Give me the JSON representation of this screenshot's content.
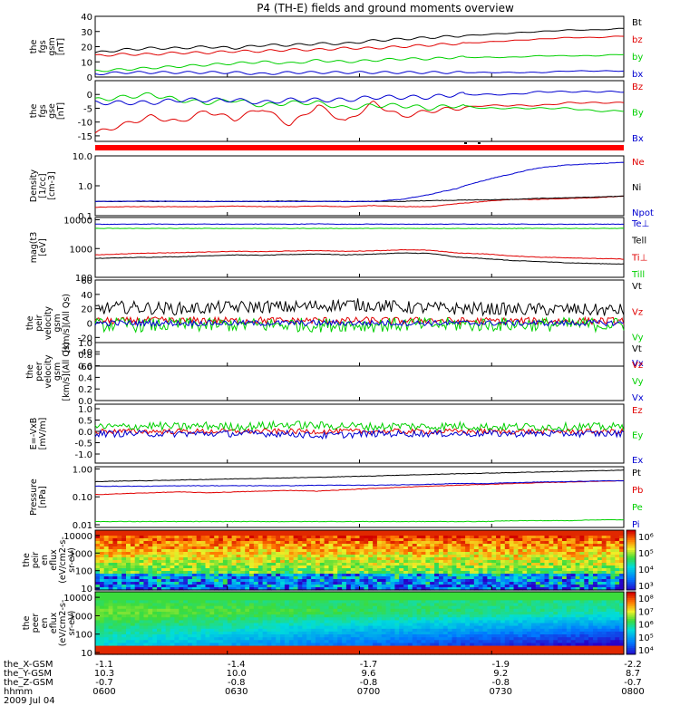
{
  "title": "P4 (TH-E) fields and ground moments overview",
  "colors": {
    "black": "#000000",
    "red": "#e00000",
    "green": "#00d000",
    "blue": "#0000d0"
  },
  "chart_data": [
    {
      "type": "line",
      "ylabel": [
        "the",
        "fgs",
        "gsm",
        "[nT]"
      ],
      "ylim": [
        0,
        40
      ],
      "yticks": [
        "40",
        "30",
        "20",
        "10",
        "0"
      ],
      "yvals": [
        40,
        30,
        20,
        10,
        0
      ],
      "series": [
        {
          "name": "Bt",
          "color": "black",
          "values": [
            16,
            18,
            19,
            19,
            20,
            19,
            21,
            21,
            22,
            22,
            24,
            25,
            26,
            27,
            28,
            29,
            30,
            31,
            31,
            32
          ]
        },
        {
          "name": "bz",
          "color": "red",
          "values": [
            14,
            15,
            15,
            16,
            16,
            17,
            17,
            18,
            18,
            19,
            19,
            20,
            21,
            22,
            23,
            24,
            25,
            26,
            26,
            27
          ]
        },
        {
          "name": "by",
          "color": "green",
          "values": [
            4,
            5,
            6,
            7,
            8,
            9,
            10,
            9,
            11,
            10,
            11,
            12,
            12,
            13,
            13,
            13,
            14,
            14,
            14,
            15
          ]
        },
        {
          "name": "bx",
          "color": "blue",
          "values": [
            2,
            3,
            3,
            3,
            3,
            3,
            2,
            3,
            3,
            3,
            3,
            3,
            3,
            3,
            3,
            3,
            3,
            4,
            4,
            4
          ]
        }
      ]
    },
    {
      "type": "line",
      "ylabel": [
        "the",
        "fgs",
        "gse",
        "[nT]"
      ],
      "ylim": [
        -17,
        5
      ],
      "yticks": [
        "0",
        "-5",
        "-10",
        "-15"
      ],
      "yvals": [
        0,
        -5,
        -10,
        -15
      ],
      "series": [
        {
          "name": "Bz",
          "color": "red",
          "values": [
            -14,
            -11,
            -8,
            -10,
            -6,
            -9,
            -5,
            -11,
            -4,
            -10,
            -3,
            -8,
            -6,
            -5,
            -4,
            -4,
            -4,
            -3,
            -3,
            -3
          ]
        },
        {
          "name": "By",
          "color": "green",
          "values": [
            -2,
            -1,
            0,
            -2,
            -3,
            -2,
            -4,
            -3,
            -3,
            -5,
            -4,
            -4,
            -5,
            -4,
            -5,
            -5,
            -5,
            -5,
            -6,
            -6
          ]
        },
        {
          "name": "Bx",
          "color": "blue",
          "values": [
            -3,
            -3,
            -3,
            -2,
            -2,
            -2,
            -3,
            -2,
            -2,
            -2,
            -1,
            -1,
            -1,
            0,
            0,
            0,
            1,
            1,
            1,
            1
          ]
        }
      ]
    },
    {
      "type": "log-line",
      "ylabel": [
        "Density",
        "[1/cc]",
        "[cm-3]"
      ],
      "ylog": [
        0.1,
        10
      ],
      "yticks": [
        "10.0",
        "1.0",
        "0.1"
      ],
      "yvals": [
        10,
        1,
        0.1
      ],
      "series": [
        {
          "name": "Ne",
          "color": "red",
          "values": [
            0.19,
            0.2,
            0.2,
            0.2,
            0.2,
            0.21,
            0.2,
            0.2,
            0.21,
            0.2,
            0.22,
            0.2,
            0.2,
            0.25,
            0.3,
            0.35,
            0.35,
            0.38,
            0.4,
            0.45
          ]
        },
        {
          "name": "Ni",
          "color": "black",
          "values": [
            0.3,
            0.3,
            0.3,
            0.3,
            0.3,
            0.3,
            0.3,
            0.31,
            0.3,
            0.3,
            0.3,
            0.3,
            0.32,
            0.33,
            0.34,
            0.35,
            0.38,
            0.4,
            0.42,
            0.45
          ]
        },
        {
          "name": "Npot",
          "color": "blue",
          "values": [
            0.3,
            0.3,
            0.31,
            0.3,
            0.3,
            0.3,
            0.3,
            0.3,
            0.3,
            0.3,
            0.3,
            0.35,
            0.5,
            0.8,
            1.5,
            2.5,
            4,
            5,
            5.5,
            6
          ]
        }
      ]
    },
    {
      "type": "log-line",
      "ylabel": [
        "mag(t3",
        "[eV]"
      ],
      "ylog": [
        100,
        12000
      ],
      "yticks": [
        "10000",
        "1000",
        "100"
      ],
      "yvals": [
        10000,
        1000,
        100
      ],
      "series": [
        {
          "name": "Te⊥",
          "color": "blue",
          "values": [
            7000,
            7000,
            7100,
            7000,
            7100,
            7000,
            7100,
            7000,
            7200,
            7000,
            7100,
            7000,
            7000,
            7100,
            7000,
            7100,
            7000,
            7000,
            7100,
            7000
          ]
        },
        {
          "name": "Tell",
          "color": "black",
          "values": [
            450,
            480,
            500,
            520,
            560,
            600,
            580,
            620,
            650,
            600,
            640,
            700,
            680,
            500,
            450,
            380,
            350,
            320,
            300,
            290
          ]
        },
        {
          "name": "Ti⊥",
          "color": "red",
          "values": [
            600,
            650,
            700,
            720,
            760,
            800,
            780,
            820,
            850,
            800,
            840,
            900,
            880,
            700,
            650,
            550,
            500,
            480,
            450,
            430
          ]
        },
        {
          "name": "Till",
          "color": "green",
          "values": [
            5000,
            5000,
            5000,
            5000,
            5000,
            5000,
            5000,
            5000,
            5000,
            5000,
            5000,
            5000,
            5000,
            5000,
            5000,
            5000,
            5000,
            5000,
            5000,
            5000
          ]
        }
      ]
    },
    {
      "type": "line",
      "noisy": true,
      "ylabel": [
        "the",
        "peir",
        "velocity",
        "gsm",
        "[km/s](All Qs)"
      ],
      "ylim": [
        -60,
        60
      ],
      "yticks": [
        "60",
        "40",
        "20",
        "0",
        "-20",
        "-40",
        "-60"
      ],
      "yvals": [
        60,
        40,
        20,
        0,
        -20,
        -40,
        -60
      ],
      "series": [
        {
          "name": "Vt",
          "color": "black",
          "values": [
            20,
            22,
            21,
            20,
            21,
            22,
            23,
            22,
            24,
            26,
            25,
            22,
            21,
            20,
            20,
            19,
            19,
            19,
            18,
            18
          ],
          "noise": 9
        },
        {
          "name": "Vz",
          "color": "red",
          "values": [
            3,
            3,
            4,
            3,
            4,
            3,
            4,
            3,
            4,
            3,
            4,
            3,
            4,
            3,
            3,
            3,
            3,
            3,
            3,
            3
          ],
          "noise": 5
        },
        {
          "name": "Vy",
          "color": "green",
          "values": [
            -3,
            -2,
            -3,
            -2,
            -3,
            -2,
            -3,
            -2,
            -3,
            -2,
            -3,
            -2,
            -2,
            -2,
            -2,
            -2,
            -2,
            -2,
            -2,
            -2
          ],
          "noise": 10
        },
        {
          "name": "Vx",
          "color": "blue",
          "values": [
            0,
            0,
            0,
            0,
            0,
            0,
            0,
            0,
            0,
            0,
            0,
            0,
            0,
            0,
            0,
            0,
            0,
            0,
            0,
            0
          ],
          "noise": 4
        }
      ]
    },
    {
      "type": "line",
      "ylabel": [
        "the",
        "peer",
        "velocity",
        "gsm",
        "[km/s](All Qs)"
      ],
      "ylim": [
        0,
        1
      ],
      "yticks": [
        "1.0",
        "0.8",
        "0.6",
        "0.4",
        "0.2",
        "0.0"
      ],
      "yvals": [
        1,
        0.8,
        0.6,
        0.4,
        0.2,
        0
      ],
      "series": [
        {
          "name": "Vt",
          "color": "black",
          "values": []
        },
        {
          "name": "Vz",
          "color": "red",
          "values": []
        },
        {
          "name": "Vy",
          "color": "green",
          "values": []
        },
        {
          "name": "Vx",
          "color": "blue",
          "values": []
        }
      ]
    },
    {
      "type": "line",
      "noisy": true,
      "ylabel": [
        "E=-VxB",
        "[mV/m]"
      ],
      "ylim": [
        -1.4,
        1.2
      ],
      "yticks": [
        "1.0",
        "0.5",
        "0.0",
        "-0.5",
        "-1.0"
      ],
      "yvals": [
        1,
        0.5,
        0,
        -0.5,
        -1
      ],
      "series": [
        {
          "name": "Ez",
          "color": "red",
          "values": [
            0,
            0,
            0,
            0,
            0,
            0,
            0,
            0,
            0,
            0,
            0,
            0,
            0,
            0,
            0,
            0,
            0,
            0,
            0,
            0
          ],
          "noise": 0.12
        },
        {
          "name": "Ey",
          "color": "green",
          "values": [
            0.2,
            0.2,
            0.25,
            0.2,
            0.25,
            0.2,
            0.25,
            0.3,
            0.25,
            0.25,
            0.2,
            0.25,
            0.2,
            0.25,
            0.2,
            0.2,
            0.2,
            0.2,
            0.2,
            0.2
          ],
          "noise": 0.18
        },
        {
          "name": "Ex",
          "color": "blue",
          "values": [
            -0.1,
            -0.1,
            -0.1,
            -0.1,
            -0.1,
            -0.1,
            -0.1,
            -0.1,
            -0.2,
            -0.15,
            -0.1,
            -0.1,
            -0.1,
            -0.1,
            -0.1,
            -0.1,
            -0.1,
            -0.1,
            -0.1,
            -0.1
          ],
          "noise": 0.15
        }
      ]
    },
    {
      "type": "log-line",
      "ylabel": [
        "Pressure",
        "[nPa]"
      ],
      "ylog": [
        0.008,
        1.2
      ],
      "yticks": [
        "1.00",
        "0.10",
        "0.01"
      ],
      "yvals": [
        1,
        0.1,
        0.01
      ],
      "series": [
        {
          "name": "Pt",
          "color": "black",
          "values": [
            0.35,
            0.37,
            0.38,
            0.4,
            0.42,
            0.44,
            0.46,
            0.48,
            0.5,
            0.53,
            0.56,
            0.6,
            0.63,
            0.67,
            0.7,
            0.74,
            0.78,
            0.82,
            0.86,
            0.9
          ]
        },
        {
          "name": "Pb",
          "color": "red",
          "values": [
            0.12,
            0.13,
            0.14,
            0.15,
            0.14,
            0.15,
            0.16,
            0.17,
            0.16,
            0.18,
            0.2,
            0.22,
            0.24,
            0.26,
            0.28,
            0.3,
            0.32,
            0.34,
            0.36,
            0.38
          ]
        },
        {
          "name": "Pe",
          "color": "green",
          "values": [
            0.013,
            0.013,
            0.013,
            0.013,
            0.013,
            0.013,
            0.013,
            0.013,
            0.013,
            0.013,
            0.013,
            0.013,
            0.013,
            0.013,
            0.013,
            0.014,
            0.014,
            0.014,
            0.015,
            0.015
          ]
        },
        {
          "name": "Pi",
          "color": "blue",
          "values": [
            0.24,
            0.24,
            0.24,
            0.25,
            0.25,
            0.25,
            0.25,
            0.25,
            0.26,
            0.26,
            0.26,
            0.27,
            0.28,
            0.3,
            0.3,
            0.32,
            0.34,
            0.35,
            0.37,
            0.38
          ]
        }
      ]
    },
    {
      "type": "heatmap",
      "ylabel": [
        "the",
        "peir",
        "en",
        "eflux",
        "(eV/cm2-s-",
        "sr-eV)"
      ],
      "ylog": [
        8,
        20000
      ],
      "yticks": [
        "10000",
        "1000",
        "100",
        "10"
      ],
      "yvals": [
        10000,
        1000,
        100,
        10
      ],
      "colorbar": {
        "labels": [
          "10⁶",
          "10⁵",
          "10⁴",
          "10³"
        ]
      }
    },
    {
      "type": "heatmap",
      "ylabel": [
        "the",
        "peer",
        "en",
        "eflux",
        "(eV/cm2-s-",
        "sr-eV)"
      ],
      "ylog": [
        8,
        20000
      ],
      "yticks": [
        "10000",
        "1000",
        "100",
        "10"
      ],
      "yvals": [
        10000,
        1000,
        100,
        10
      ],
      "colorbar": {
        "labels": [
          "10⁸",
          "10⁷",
          "10⁶",
          "10⁵",
          "10⁴"
        ]
      }
    }
  ],
  "xaxis": {
    "rows": [
      {
        "label": "the_X-GSM",
        "values": [
          "-1.1",
          "-1.4",
          "-1.7",
          "-1.9",
          "-2.2"
        ]
      },
      {
        "label": "the_Y-GSM",
        "values": [
          "10.3",
          "10.0",
          "9.6",
          "9.2",
          "8.7"
        ]
      },
      {
        "label": "the_Z-GSM",
        "values": [
          "-0.7",
          "-0.8",
          "-0.8",
          "-0.8",
          "-0.7"
        ]
      },
      {
        "label": "hhmm",
        "values": [
          "0600",
          "0630",
          "0700",
          "0730",
          "0800"
        ]
      }
    ],
    "date": "2009 Jul 04"
  }
}
